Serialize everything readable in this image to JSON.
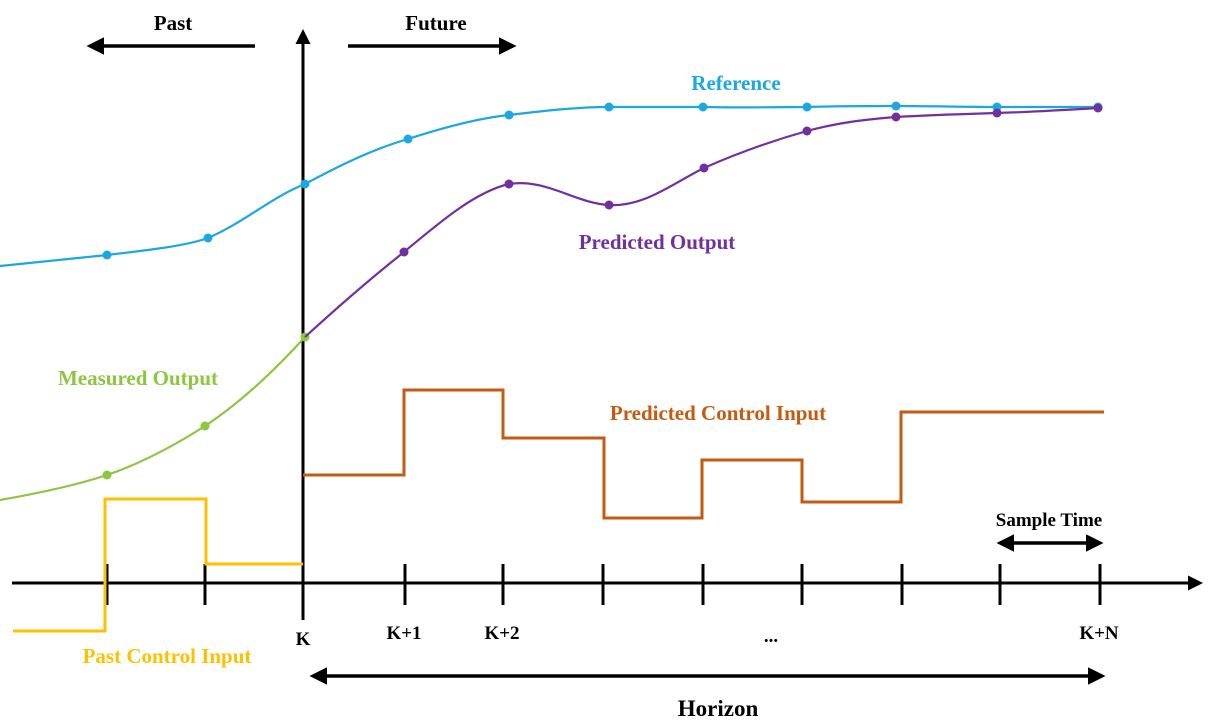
{
  "labels": {
    "past": "Past",
    "future": "Future",
    "reference": "Reference",
    "predicted_output": "Predicted Output",
    "measured_output": "Measured Output",
    "predicted_control_input": "Predicted Control Input",
    "past_control_input": "Past Control Input",
    "sample_time": "Sample Time",
    "horizon": "Horizon"
  },
  "ticks": {
    "k": "K",
    "k1": "K+1",
    "k2": "K+2",
    "dots": "...",
    "kn": "K+N"
  },
  "colors": {
    "reference": "#1ba8e0",
    "predicted_output": "#7030a0",
    "measured_output": "#8dc63f",
    "predicted_control_input": "#c55a11",
    "past_control_input": "#ffc000",
    "axis": "#000000"
  }
}
